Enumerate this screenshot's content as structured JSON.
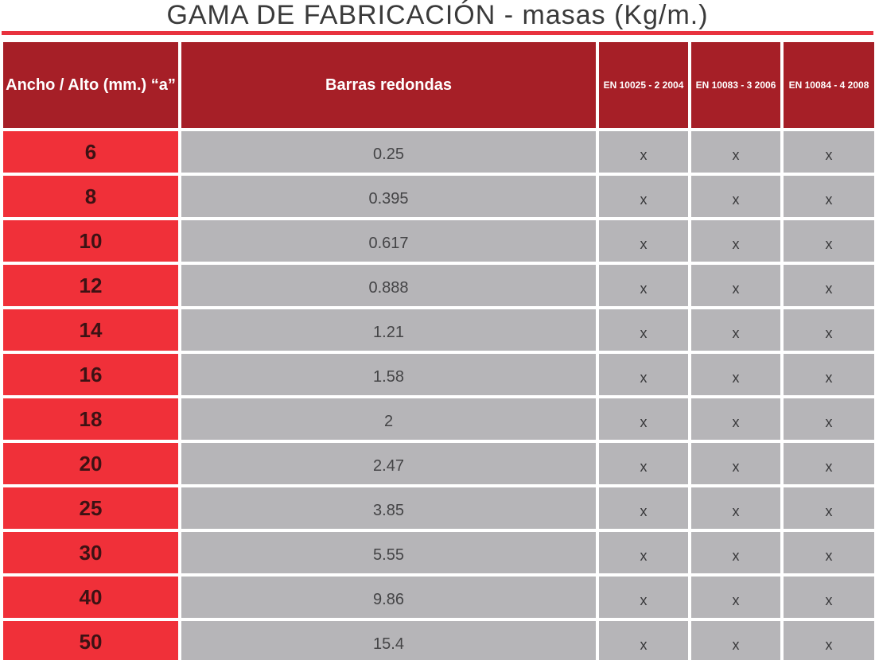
{
  "title": "GAMA DE FABRICACIÓN - masas (Kg/m.)",
  "colors": {
    "header": "#a61f27",
    "size_cell": "#f03039",
    "data_cell": "#b6b5b8",
    "rule": "#e8323e"
  },
  "headers": {
    "size": "Ancho / Alto (mm.) “a”",
    "round_bars": "Barras redondas",
    "std1": "EN 10025 - 2 2004",
    "std2": "EN 10083 - 3 2006",
    "std3": "EN 10084 - 4 2008"
  },
  "rows": [
    {
      "size": "6",
      "mass": "0.25",
      "s1": "x",
      "s2": "x",
      "s3": "x"
    },
    {
      "size": "8",
      "mass": "0.395",
      "s1": "x",
      "s2": "x",
      "s3": "x"
    },
    {
      "size": "10",
      "mass": "0.617",
      "s1": "x",
      "s2": "x",
      "s3": "x"
    },
    {
      "size": "12",
      "mass": "0.888",
      "s1": "x",
      "s2": "x",
      "s3": "x"
    },
    {
      "size": "14",
      "mass": "1.21",
      "s1": "x",
      "s2": "x",
      "s3": "x"
    },
    {
      "size": "16",
      "mass": "1.58",
      "s1": "x",
      "s2": "x",
      "s3": "x"
    },
    {
      "size": "18",
      "mass": "2",
      "s1": "x",
      "s2": "x",
      "s3": "x"
    },
    {
      "size": "20",
      "mass": "2.47",
      "s1": "x",
      "s2": "x",
      "s3": "x"
    },
    {
      "size": "25",
      "mass": "3.85",
      "s1": "x",
      "s2": "x",
      "s3": "x"
    },
    {
      "size": "30",
      "mass": "5.55",
      "s1": "x",
      "s2": "x",
      "s3": "x"
    },
    {
      "size": "40",
      "mass": "9.86",
      "s1": "x",
      "s2": "x",
      "s3": "x"
    },
    {
      "size": "50",
      "mass": "15.4",
      "s1": "x",
      "s2": "x",
      "s3": "x"
    }
  ]
}
